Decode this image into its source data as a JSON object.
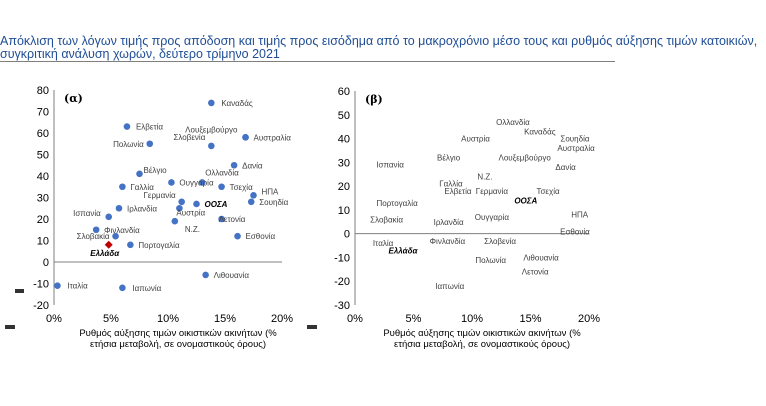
{
  "title": "Απόκλιση των λόγων τιμής προς απόδοση και τιμής προς εισόδημα από το μακροχρόνιο μέσο τους και ρυθμός αύξησης τιμών κατοικιών, συγκριτική ανάλυση χωρών, δεύτερο τρίμηνο 2021",
  "chart_data": [
    {
      "type": "scatter",
      "panel_label": "(α)",
      "xlabel": "Ρυθμός αύξησης τιμών οικιστικών ακινήτων (%\nετήσια μεταβολή, σε ονομαστικούς όρους)",
      "xlim": [
        0,
        0.2
      ],
      "ylim": [
        -20,
        80
      ],
      "x_ticks": [
        0,
        0.05,
        0.1,
        0.15,
        0.2
      ],
      "x_tick_labels": [
        "0%",
        "5%",
        "10%",
        "15%",
        "20%"
      ],
      "y_ticks": [
        -20,
        -10,
        0,
        10,
        20,
        30,
        40,
        50,
        60,
        70,
        80
      ],
      "y_tick_labels": [
        "-20",
        "-10",
        "0",
        "10",
        "20",
        "30",
        "40",
        "50",
        "60",
        "70",
        "80"
      ],
      "marker_color": "#4472c4",
      "highlight_color": "#c00000",
      "points": [
        {
          "name": "Καναδάς",
          "x": 0.138,
          "y": 74
        },
        {
          "name": "Βέλγιο",
          "x": 0.075,
          "y": 41
        },
        {
          "name": "Ελβετία",
          "x": 0.064,
          "y": 63
        },
        {
          "name": "Λουξεμβούργο",
          "x": 0.168,
          "y": 58
        },
        {
          "name": "Αυστραλία",
          "x": 0.168,
          "y": 58
        },
        {
          "name": "Πολωνία",
          "x": 0.084,
          "y": 55
        },
        {
          "name": "Σλοβενία",
          "x": 0.138,
          "y": 54
        },
        {
          "name": "Δανία",
          "x": 0.158,
          "y": 45
        },
        {
          "name": "Ολλανδία",
          "x": 0.13,
          "y": 37
        },
        {
          "name": "Ουγγαρία",
          "x": 0.103,
          "y": 37
        },
        {
          "name": "Γαλλία",
          "x": 0.06,
          "y": 35
        },
        {
          "name": "Τσεχία",
          "x": 0.147,
          "y": 35
        },
        {
          "name": "ΗΠΑ",
          "x": 0.175,
          "y": 31
        },
        {
          "name": "Γερμανία",
          "x": 0.112,
          "y": 28
        },
        {
          "name": "Σουηδία",
          "x": 0.173,
          "y": 28
        },
        {
          "name": "ΟΟΣΑ",
          "x": 0.125,
          "y": 27
        },
        {
          "name": "Ιρλανδία",
          "x": 0.057,
          "y": 25
        },
        {
          "name": "Αυστρία",
          "x": 0.11,
          "y": 25
        },
        {
          "name": "Λετονία",
          "x": 0.147,
          "y": 20
        },
        {
          "name": "Ισπανία",
          "x": 0.048,
          "y": 21
        },
        {
          "name": "Φινλανδία",
          "x": 0.037,
          "y": 15
        },
        {
          "name": "Ν.Ζ.",
          "x": 0.106,
          "y": 19
        },
        {
          "name": "Σλοβακία",
          "x": 0.054,
          "y": 12
        },
        {
          "name": "Εσθονία",
          "x": 0.161,
          "y": 12
        },
        {
          "name": "Πορτογαλία",
          "x": 0.067,
          "y": 8
        },
        {
          "name": "Ελλάδα",
          "x": 0.048,
          "y": 8
        },
        {
          "name": "Λιθουανία",
          "x": 0.133,
          "y": -6
        },
        {
          "name": "Ιταλία",
          "x": 0.003,
          "y": -11
        },
        {
          "name": "Ιαπωνία",
          "x": 0.06,
          "y": -12
        }
      ]
    },
    {
      "type": "scatter",
      "panel_label": "(β)",
      "xlabel": "Ρυθμός αύξησης τιμών οικιστικών ακινήτων (%\nετήσια μεταβολή, σε ονομαστικούς όρους)",
      "xlim": [
        0,
        0.2
      ],
      "ylim": [
        -30,
        60
      ],
      "x_ticks": [
        0,
        0.05,
        0.1,
        0.15,
        0.2
      ],
      "x_tick_labels": [
        "0%",
        "5%",
        "10%",
        "15%",
        "20%"
      ],
      "y_ticks": [
        -30,
        -20,
        -10,
        0,
        10,
        20,
        30,
        40,
        50,
        60
      ],
      "y_tick_labels": [
        "-30",
        "-20",
        "-10",
        "0",
        "10",
        "20",
        "30",
        "40",
        "50",
        "60"
      ],
      "labels": [
        {
          "name": "Ολλανδία",
          "x": 0.135,
          "y": 47
        },
        {
          "name": "Καναδάς",
          "x": 0.158,
          "y": 43
        },
        {
          "name": "Σουηδία",
          "x": 0.188,
          "y": 40
        },
        {
          "name": "Αυστρία",
          "x": 0.103,
          "y": 40
        },
        {
          "name": "Αυστραλία",
          "x": 0.189,
          "y": 36
        },
        {
          "name": "Βέλγιο",
          "x": 0.08,
          "y": 32
        },
        {
          "name": "Λουξεμβούργο",
          "x": 0.145,
          "y": 32
        },
        {
          "name": "Ισπανία",
          "x": 0.03,
          "y": 29
        },
        {
          "name": "Δανία",
          "x": 0.18,
          "y": 28
        },
        {
          "name": "Ν.Ζ.",
          "x": 0.111,
          "y": 24
        },
        {
          "name": "Γαλλία",
          "x": 0.082,
          "y": 21
        },
        {
          "name": "Γερμανία",
          "x": 0.117,
          "y": 18
        },
        {
          "name": "Τσεχία",
          "x": 0.165,
          "y": 18
        },
        {
          "name": "Ελβετία",
          "x": 0.088,
          "y": 18
        },
        {
          "name": "ΟΟΣΑ",
          "x": 0.146,
          "y": 14
        },
        {
          "name": "Πορτογαλία",
          "x": 0.036,
          "y": 13
        },
        {
          "name": "ΗΠΑ",
          "x": 0.192,
          "y": 8
        },
        {
          "name": "Ουγγαρία",
          "x": 0.117,
          "y": 7
        },
        {
          "name": "Σλοβακία",
          "x": 0.027,
          "y": 6
        },
        {
          "name": "Ιρλανδία",
          "x": 0.08,
          "y": 5
        },
        {
          "name": "Εσθονία",
          "x": 0.188,
          "y": 1
        },
        {
          "name": "Φινλανδία",
          "x": 0.079,
          "y": -3
        },
        {
          "name": "Σλοβενία",
          "x": 0.124,
          "y": -3
        },
        {
          "name": "Ιταλία",
          "x": 0.024,
          "y": -4
        },
        {
          "name": "Ελλάδα",
          "x": 0.041,
          "y": -7
        },
        {
          "name": "Λιθουανία",
          "x": 0.159,
          "y": -10
        },
        {
          "name": "Πολωνία",
          "x": 0.116,
          "y": -11
        },
        {
          "name": "Λετονία",
          "x": 0.154,
          "y": -16
        },
        {
          "name": "Ιαπωνία",
          "x": 0.081,
          "y": -22
        }
      ]
    }
  ]
}
